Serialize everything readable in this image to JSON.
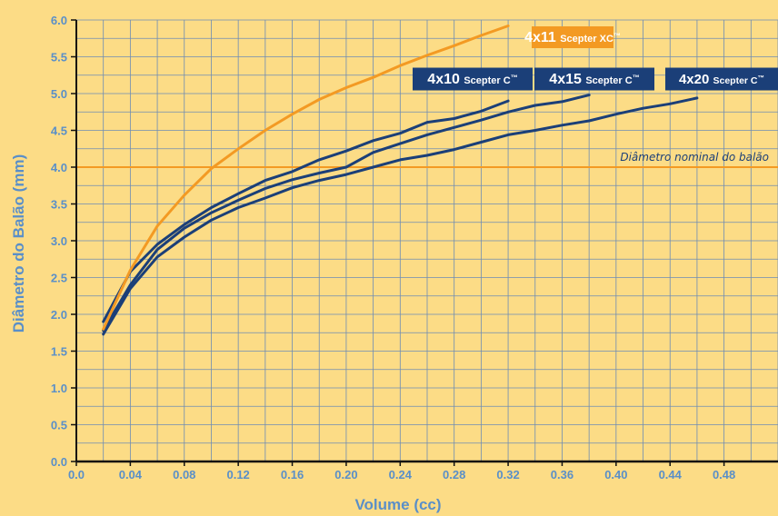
{
  "chart_data": {
    "type": "line",
    "xlabel": "Volume (cc)",
    "ylabel": "Diâmetro do Balão (mm)",
    "xlim": [
      0,
      0.52
    ],
    "ylim": [
      0,
      6.0
    ],
    "x_ticks": [
      "0.0",
      "0.04",
      "0.08",
      "0.12",
      "0.16",
      "0.20",
      "0.24",
      "0.28",
      "0.32",
      "0.36",
      "0.40",
      "0.44",
      "0.48"
    ],
    "y_ticks": [
      "0.0",
      "0.5",
      "1.0",
      "1.5",
      "2.0",
      "2.5",
      "3.0",
      "3.5",
      "4.0",
      "4.5",
      "5.0",
      "5.5",
      "6.0"
    ],
    "grid": true,
    "reference_line": {
      "y": 4.0,
      "label": "Diâmetro nominal do balão",
      "color": "#F39A23"
    },
    "colors": {
      "background": "#FCDC86",
      "grid": "#6E8CB4",
      "axis": "#111111",
      "tick_text": "#5A8FC8",
      "orange": "#F39A23",
      "navy": "#1B3F78"
    },
    "series": [
      {
        "label_main": "4x11",
        "label_sub": "Scepter XC",
        "label_tm": "™",
        "color": "#F39A23",
        "x": [
          0.02,
          0.04,
          0.06,
          0.08,
          0.1,
          0.12,
          0.14,
          0.16,
          0.18,
          0.2,
          0.22,
          0.24,
          0.26,
          0.28,
          0.3,
          0.32
        ],
        "y": [
          1.8,
          2.6,
          3.2,
          3.62,
          3.98,
          4.25,
          4.5,
          4.72,
          4.92,
          5.08,
          5.22,
          5.38,
          5.52,
          5.65,
          5.79,
          5.92
        ]
      },
      {
        "label_main": "4x10",
        "label_sub": "Scepter C",
        "label_tm": "™",
        "color": "#1B3F78",
        "x": [
          0.02,
          0.04,
          0.06,
          0.08,
          0.1,
          0.12,
          0.14,
          0.16,
          0.18,
          0.2,
          0.22,
          0.24,
          0.26,
          0.28,
          0.3,
          0.32
        ],
        "y": [
          1.9,
          2.58,
          2.95,
          3.22,
          3.45,
          3.64,
          3.82,
          3.94,
          4.1,
          4.22,
          4.36,
          4.46,
          4.61,
          4.66,
          4.76,
          4.9
        ]
      },
      {
        "label_main": "4x15",
        "label_sub": "Scepter C",
        "label_tm": "™",
        "color": "#1B3F78",
        "x": [
          0.02,
          0.04,
          0.06,
          0.08,
          0.1,
          0.12,
          0.14,
          0.16,
          0.18,
          0.2,
          0.22,
          0.24,
          0.26,
          0.28,
          0.3,
          0.32,
          0.34,
          0.36,
          0.38
        ],
        "y": [
          1.78,
          2.4,
          2.88,
          3.17,
          3.38,
          3.55,
          3.71,
          3.83,
          3.92,
          4.0,
          4.2,
          4.32,
          4.44,
          4.54,
          4.64,
          4.75,
          4.84,
          4.89,
          4.98
        ]
      },
      {
        "label_main": "4x20",
        "label_sub": "Scepter C",
        "label_tm": "™",
        "color": "#1B3F78",
        "x": [
          0.02,
          0.04,
          0.06,
          0.08,
          0.1,
          0.12,
          0.14,
          0.16,
          0.18,
          0.2,
          0.22,
          0.24,
          0.26,
          0.28,
          0.3,
          0.32,
          0.34,
          0.36,
          0.38,
          0.4,
          0.42,
          0.44,
          0.46
        ],
        "y": [
          1.73,
          2.35,
          2.78,
          3.05,
          3.28,
          3.45,
          3.58,
          3.72,
          3.82,
          3.9,
          4.0,
          4.1,
          4.16,
          4.24,
          4.34,
          4.44,
          4.5,
          4.57,
          4.63,
          4.72,
          4.8,
          4.86,
          4.94
        ]
      }
    ]
  }
}
